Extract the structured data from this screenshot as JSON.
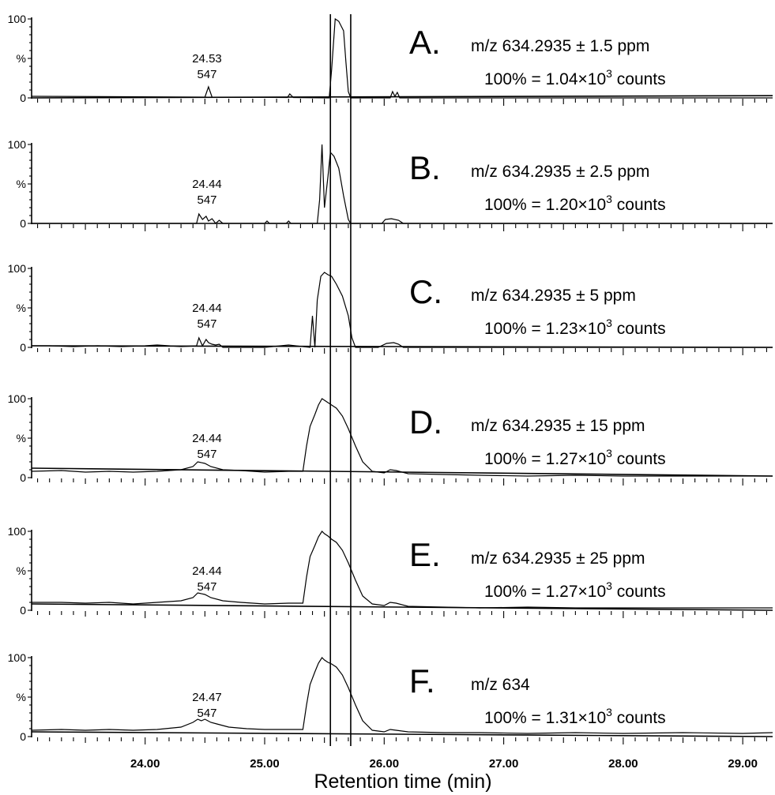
{
  "chart_data": {
    "type": "line",
    "xlabel": "Retention time (min)",
    "ylabel": "%",
    "xlim": [
      23.05,
      29.25
    ],
    "ylim": [
      0,
      100
    ],
    "x_ticks": [
      24.0,
      25.0,
      26.0,
      27.0,
      28.0,
      29.0
    ],
    "x_tick_labels": [
      "24.00",
      "25.00",
      "26.00",
      "27.00",
      "28.00",
      "29.00"
    ],
    "y_tick_labels": [
      "0",
      "%",
      "100"
    ],
    "reference_lines_x": [
      25.55,
      25.72
    ],
    "panels": [
      {
        "letter": "A.",
        "title": "m/z 634.2935 ± 1.5 ppm",
        "scale_prefix": "100% = 1.04×10",
        "scale_exp": "3",
        "scale_suffix": " counts",
        "peak_annotation": {
          "rt": "24.53",
          "area": "547"
        },
        "baseline": [
          0,
          2.8
        ],
        "x": [
          23.05,
          24.5,
          24.53,
          24.56,
          25.19,
          25.21,
          25.24,
          25.54,
          25.56,
          25.59,
          25.62,
          25.66,
          25.68,
          25.7,
          25.72,
          26.05,
          26.07,
          26.09,
          26.11,
          26.13,
          29.25
        ],
        "y": [
          2,
          1,
          14,
          1,
          0.5,
          5,
          0.5,
          0,
          35,
          100,
          97,
          85,
          45,
          8,
          0,
          0,
          8,
          2,
          7,
          0,
          0
        ]
      },
      {
        "letter": "B.",
        "title": "m/z 634.2935 ± 2.5 ppm",
        "scale_prefix": "100% = 1.20×10",
        "scale_exp": "3",
        "scale_suffix": " counts",
        "peak_annotation": {
          "rt": "24.44",
          "area": "547"
        },
        "baseline": [
          0,
          0
        ],
        "x": [
          23.05,
          24.43,
          24.45,
          24.48,
          24.51,
          24.53,
          24.56,
          24.59,
          24.62,
          24.65,
          25.0,
          25.02,
          25.04,
          25.18,
          25.2,
          25.22,
          25.44,
          25.46,
          25.48,
          25.5,
          25.53,
          25.55,
          25.58,
          25.62,
          25.66,
          25.7,
          25.72,
          25.85,
          25.98,
          26.01,
          26.06,
          26.12,
          26.16,
          26.5,
          27.0,
          29.25
        ],
        "y": [
          0,
          0,
          12,
          5,
          9,
          3,
          6,
          0,
          4,
          0,
          0,
          3,
          0,
          0,
          3,
          0,
          0,
          30,
          100,
          20,
          60,
          90,
          85,
          70,
          35,
          5,
          0,
          0,
          0,
          5,
          6,
          4,
          0,
          0,
          0,
          0
        ]
      },
      {
        "letter": "C.",
        "title": "m/z 634.2935 ± 5 ppm",
        "scale_prefix": "100% = 1.23×10",
        "scale_exp": "3",
        "scale_suffix": " counts",
        "peak_annotation": {
          "rt": "24.44",
          "area": "547"
        },
        "baseline": [
          2,
          0
        ],
        "x": [
          23.05,
          23.2,
          23.4,
          23.6,
          23.8,
          24.0,
          24.1,
          24.3,
          24.43,
          24.45,
          24.48,
          24.51,
          24.53,
          24.56,
          24.59,
          24.62,
          24.65,
          25.0,
          25.2,
          25.38,
          25.4,
          25.42,
          25.44,
          25.47,
          25.5,
          25.53,
          25.56,
          25.6,
          25.65,
          25.7,
          25.73,
          25.76,
          25.95,
          26.02,
          26.08,
          26.12,
          26.16,
          26.3,
          29.25
        ],
        "y": [
          2,
          2,
          1,
          2,
          1,
          2,
          3,
          1,
          2,
          12,
          2,
          10,
          6,
          4,
          3,
          4,
          0,
          0,
          3,
          0,
          40,
          0,
          60,
          90,
          95,
          92,
          90,
          80,
          65,
          40,
          12,
          0,
          0,
          5,
          6,
          4,
          0,
          0,
          0
        ]
      },
      {
        "letter": "D.",
        "title": "m/z 634.2935 ± 15 ppm",
        "scale_prefix": "100% = 1.27×10",
        "scale_exp": "3",
        "scale_suffix": " counts",
        "peak_annotation": {
          "rt": "24.44",
          "area": "547"
        },
        "baseline": [
          12,
          2
        ],
        "x": [
          23.05,
          23.3,
          23.5,
          23.7,
          23.9,
          24.1,
          24.3,
          24.4,
          24.44,
          24.5,
          24.55,
          24.65,
          24.8,
          25.0,
          25.2,
          25.32,
          25.35,
          25.38,
          25.42,
          25.45,
          25.48,
          25.5,
          25.53,
          25.56,
          25.6,
          25.65,
          25.7,
          25.76,
          25.82,
          25.9,
          26.0,
          26.05,
          26.1,
          26.2,
          26.5,
          26.8,
          27.2,
          27.6,
          28.0,
          28.5,
          29.0,
          29.25
        ],
        "y": [
          8,
          9,
          7,
          8,
          7,
          8,
          10,
          14,
          20,
          18,
          14,
          10,
          9,
          7,
          8,
          8,
          40,
          65,
          80,
          92,
          100,
          98,
          95,
          92,
          88,
          78,
          62,
          40,
          20,
          8,
          6,
          10,
          9,
          5,
          4,
          3,
          2,
          3,
          2,
          2,
          2,
          2
        ]
      },
      {
        "letter": "E.",
        "title": "m/z 634.2935 ± 25 ppm",
        "scale_prefix": "100% = 1.27×10",
        "scale_exp": "3",
        "scale_suffix": " counts",
        "peak_annotation": {
          "rt": "24.44",
          "area": "547"
        },
        "baseline": [
          8,
          0
        ],
        "x": [
          23.05,
          23.3,
          23.5,
          23.7,
          23.9,
          24.1,
          24.3,
          24.4,
          24.44,
          24.5,
          24.55,
          24.65,
          24.8,
          25.0,
          25.2,
          25.32,
          25.35,
          25.38,
          25.42,
          25.45,
          25.48,
          25.5,
          25.53,
          25.56,
          25.6,
          25.65,
          25.7,
          25.76,
          25.82,
          25.9,
          26.0,
          26.05,
          26.1,
          26.2,
          26.5,
          26.8,
          27.2,
          27.6,
          28.0,
          28.5,
          29.0,
          29.25
        ],
        "y": [
          10,
          10,
          9,
          10,
          8,
          10,
          12,
          16,
          22,
          20,
          16,
          12,
          10,
          8,
          9,
          9,
          42,
          68,
          82,
          93,
          100,
          97,
          94,
          90,
          86,
          76,
          60,
          38,
          18,
          8,
          6,
          10,
          9,
          5,
          4,
          3,
          4,
          3,
          3,
          3,
          3,
          3
        ]
      },
      {
        "letter": "F.",
        "title": "m/z 634",
        "scale_prefix": "100% = 1.31×10",
        "scale_exp": "3",
        "scale_suffix": " counts",
        "peak_annotation": {
          "rt": "24.47",
          "area": "547"
        },
        "baseline": [
          6,
          0
        ],
        "x": [
          23.05,
          23.3,
          23.5,
          23.7,
          23.9,
          24.1,
          24.3,
          24.4,
          24.44,
          24.47,
          24.5,
          24.55,
          24.6,
          24.7,
          24.85,
          25.0,
          25.2,
          25.32,
          25.35,
          25.38,
          25.42,
          25.45,
          25.48,
          25.5,
          25.53,
          25.56,
          25.6,
          25.65,
          25.7,
          25.76,
          25.82,
          25.9,
          26.0,
          26.05,
          26.1,
          26.2,
          26.5,
          26.8,
          27.2,
          27.6,
          28.0,
          28.5,
          29.0,
          29.25
        ],
        "y": [
          8,
          9,
          8,
          9,
          8,
          9,
          12,
          18,
          22,
          20,
          22,
          18,
          16,
          12,
          10,
          9,
          9,
          9,
          40,
          66,
          82,
          93,
          100,
          97,
          94,
          92,
          88,
          78,
          62,
          40,
          20,
          8,
          6,
          9,
          8,
          6,
          5,
          5,
          4,
          5,
          4,
          5,
          4,
          5
        ]
      }
    ]
  }
}
